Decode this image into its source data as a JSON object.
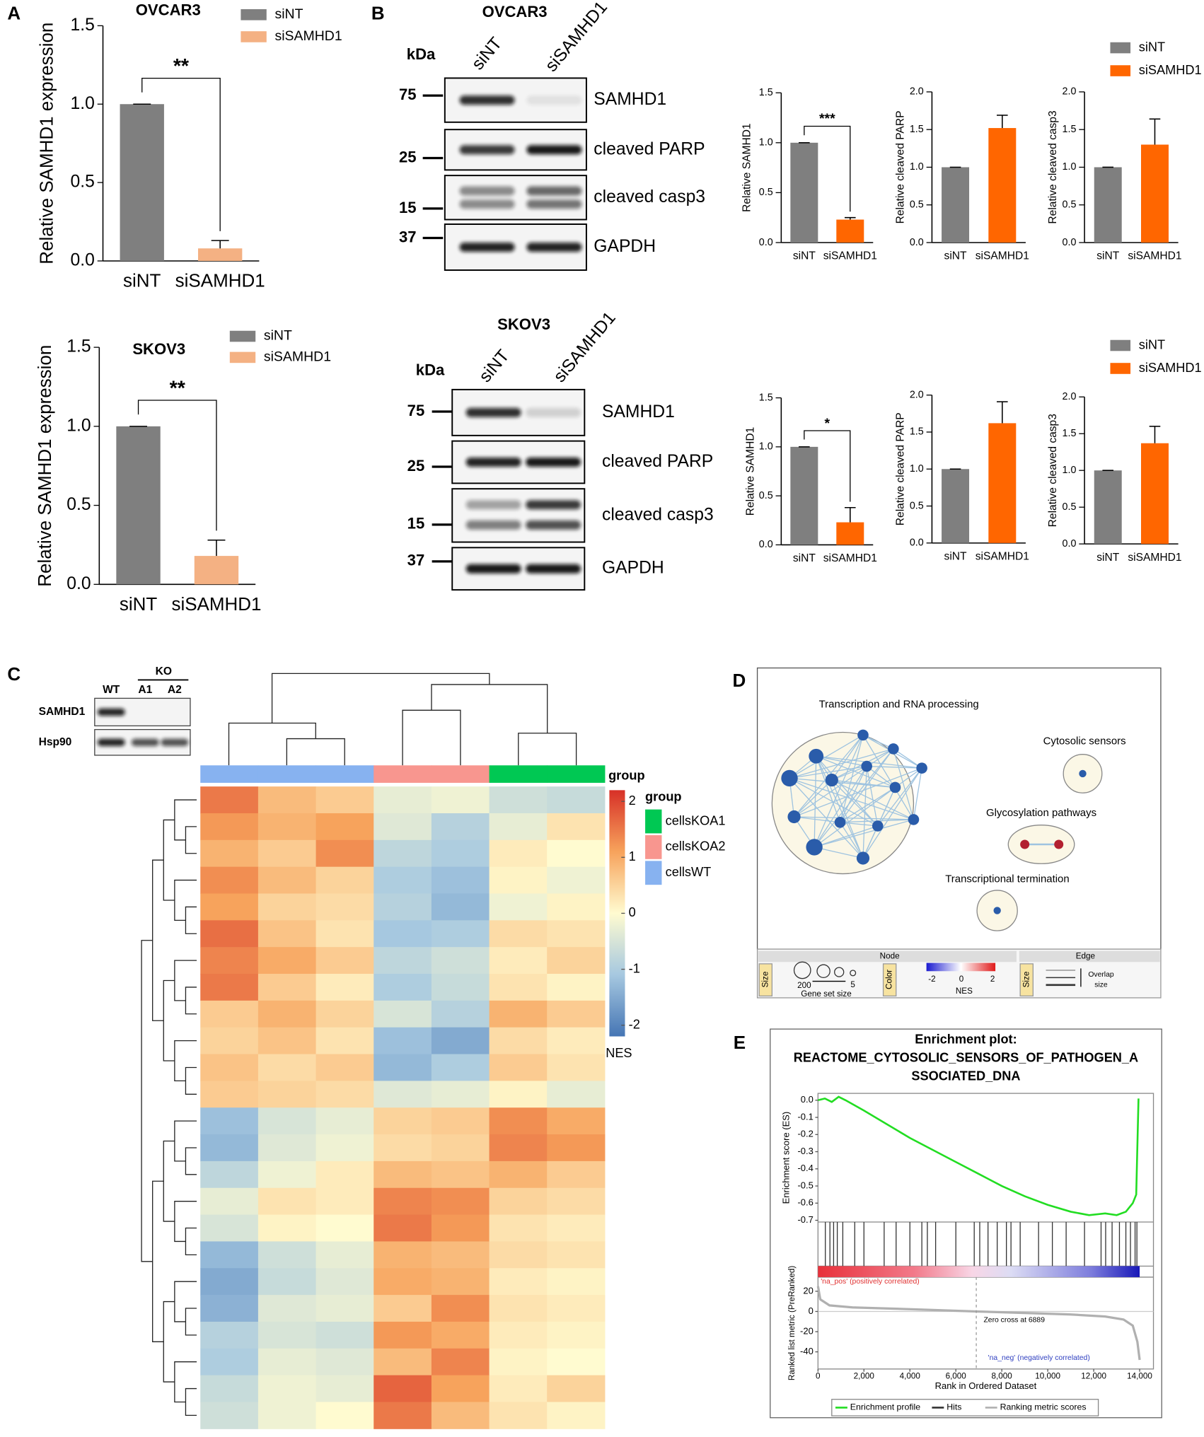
{
  "panel_labels": [
    "A",
    "B",
    "C",
    "D",
    "E"
  ],
  "chart_data": [
    {
      "type": "bar",
      "title": "OVCAR3",
      "y_label": "Relative SAMHD1 expression",
      "categories": [
        "siNT",
        "siSAMHD1"
      ],
      "values": [
        1.0,
        0.08
      ],
      "errors": [
        0,
        0.05
      ],
      "colors": [
        "#7f7f7f",
        "#f4b183"
      ],
      "ylim": [
        0,
        1.5
      ],
      "yticks": [
        {
          "value": 0,
          "label": "0.0"
        },
        0.5,
        {
          "value": 1,
          "label": "1.0"
        },
        1.5
      ],
      "significance": "**",
      "legend": true
    },
    {
      "type": "bar",
      "title": "SKOV3",
      "y_label": "Relative SAMHD1 expression",
      "categories": [
        "siNT",
        "siSAMHD1"
      ],
      "values": [
        1.0,
        0.18
      ],
      "errors": [
        0,
        0.1
      ],
      "colors": [
        "#7f7f7f",
        "#f4b183"
      ],
      "ylim": [
        0,
        1.5
      ],
      "yticks": [
        {
          "value": 0,
          "label": "0.0"
        },
        0.5,
        {
          "value": 1,
          "label": "1.0"
        },
        1.5
      ],
      "significance": "**",
      "legend": true
    },
    {
      "type": "bar",
      "y_label": "Relative SAMHD1",
      "categories": [
        "siNT",
        "siSAMHD1"
      ],
      "values": [
        1.0,
        0.23
      ],
      "errors": [
        0,
        0.02
      ],
      "colors": [
        "#7f7f7f",
        "#ff6600"
      ],
      "ylim": [
        0,
        1.5
      ],
      "yticks": [
        {
          "value": 0,
          "label": "0.0"
        },
        0.5,
        {
          "value": 1,
          "label": "1.0"
        },
        1.5
      ],
      "significance": "***"
    },
    {
      "type": "bar",
      "y_label": "Relative cleaved PARP",
      "categories": [
        "siNT",
        "siSAMHD1"
      ],
      "values": [
        1.0,
        1.52
      ],
      "errors": [
        0,
        0.17
      ],
      "colors": [
        "#7f7f7f",
        "#ff6600"
      ],
      "ylim": [
        0,
        2
      ],
      "yticks": [
        {
          "value": 0,
          "label": "0.0"
        },
        0.5,
        {
          "value": 1,
          "label": "1.0"
        },
        1.5,
        {
          "value": 2,
          "label": "2.0"
        }
      ]
    },
    {
      "type": "bar",
      "y_label": "Relative cleaved casp3",
      "categories": [
        "siNT",
        "siSAMHD1"
      ],
      "values": [
        1.0,
        1.3
      ],
      "errors": [
        0,
        0.34
      ],
      "colors": [
        "#7f7f7f",
        "#ff6600"
      ],
      "ylim": [
        0,
        2
      ],
      "yticks": [
        {
          "value": 0,
          "label": "0.0"
        },
        0.5,
        {
          "value": 1,
          "label": "1.0"
        },
        1.5,
        {
          "value": 2,
          "label": "2.0"
        }
      ],
      "legend": true
    },
    {
      "type": "bar",
      "y_label": "Relative SAMHD1",
      "categories": [
        "siNT",
        "siSAMHD1"
      ],
      "values": [
        1.0,
        0.23
      ],
      "errors": [
        0,
        0.15
      ],
      "colors": [
        "#7f7f7f",
        "#ff6600"
      ],
      "ylim": [
        0,
        1.5
      ],
      "yticks": [
        {
          "value": 0,
          "label": "0.0"
        },
        0.5,
        {
          "value": 1,
          "label": "1.0"
        },
        1.5
      ],
      "significance": "*"
    },
    {
      "type": "bar",
      "y_label": "Relative cleaved PARP",
      "categories": [
        "siNT",
        "siSAMHD1"
      ],
      "values": [
        1.0,
        1.62
      ],
      "errors": [
        0,
        0.29
      ],
      "colors": [
        "#7f7f7f",
        "#ff6600"
      ],
      "ylim": [
        0,
        2
      ],
      "yticks": [
        {
          "value": 0,
          "label": "0.0"
        },
        0.5,
        {
          "value": 1,
          "label": "1.0"
        },
        1.5,
        {
          "value": 2,
          "label": "2.0"
        }
      ]
    },
    {
      "type": "bar",
      "y_label": "Relative cleaved casp3",
      "categories": [
        "siNT",
        "siSAMHD1"
      ],
      "values": [
        1.0,
        1.37
      ],
      "errors": [
        0,
        0.23
      ],
      "colors": [
        "#7f7f7f",
        "#ff6600"
      ],
      "ylim": [
        0,
        2
      ],
      "yticks": [
        {
          "value": 0,
          "label": "0.0"
        },
        0.5,
        {
          "value": 1,
          "label": "1.0"
        },
        1.5,
        {
          "value": 2,
          "label": "2.0"
        }
      ],
      "legend": true
    },
    {
      "type": "heatmap",
      "values": [
        [
          1.5,
          0.8,
          0.6,
          -0.3,
          -0.2,
          -0.6,
          -0.7
        ],
        [
          1.2,
          0.9,
          1.1,
          -0.4,
          -0.9,
          -0.3,
          0.3
        ],
        [
          0.9,
          0.6,
          1.3,
          -0.8,
          -1.0,
          0.2,
          0.0
        ],
        [
          1.3,
          0.8,
          0.5,
          -1.0,
          -1.2,
          0.1,
          -0.2
        ],
        [
          1.1,
          0.5,
          0.4,
          -0.9,
          -1.3,
          -0.2,
          0.1
        ],
        [
          1.6,
          0.7,
          0.3,
          -1.1,
          -1.0,
          0.4,
          0.3
        ],
        [
          1.4,
          1.0,
          0.6,
          -0.8,
          -0.6,
          0.2,
          0.5
        ],
        [
          1.5,
          0.6,
          0.2,
          -1.0,
          -0.7,
          0.3,
          0.1
        ],
        [
          0.6,
          0.9,
          0.5,
          -0.5,
          -0.9,
          0.9,
          0.6
        ],
        [
          0.5,
          0.7,
          0.3,
          -1.2,
          -1.5,
          0.4,
          0.2
        ],
        [
          0.7,
          0.4,
          0.6,
          -1.3,
          -1.0,
          0.6,
          0.3
        ],
        [
          0.6,
          0.5,
          0.4,
          -0.4,
          -0.3,
          0.1,
          -0.3
        ],
        [
          -1.2,
          -0.5,
          -0.3,
          0.5,
          0.6,
          1.3,
          1.0
        ],
        [
          -1.3,
          -0.4,
          -0.2,
          0.4,
          0.5,
          1.4,
          1.2
        ],
        [
          -0.8,
          -0.2,
          0.2,
          0.8,
          0.7,
          0.9,
          0.6
        ],
        [
          -0.3,
          0.3,
          0.2,
          1.4,
          1.3,
          0.5,
          0.4
        ],
        [
          -0.5,
          0.1,
          0.0,
          1.5,
          1.2,
          0.3,
          0.2
        ],
        [
          -1.3,
          -0.6,
          -0.3,
          0.9,
          0.8,
          0.4,
          0.3
        ],
        [
          -1.5,
          -0.7,
          -0.4,
          1.0,
          0.9,
          0.2,
          0.1
        ],
        [
          -1.4,
          -0.4,
          -0.3,
          0.6,
          1.3,
          0.3,
          0.2
        ],
        [
          -0.9,
          -0.5,
          -0.6,
          1.2,
          1.0,
          0.2,
          0.1
        ],
        [
          -1.0,
          -0.3,
          -0.4,
          0.8,
          1.4,
          0.1,
          0.0
        ],
        [
          -0.7,
          -0.2,
          -0.3,
          1.7,
          1.1,
          0.2,
          0.5
        ],
        [
          -0.6,
          -0.2,
          0.0,
          1.5,
          0.8,
          0.3,
          0.1
        ]
      ],
      "column_groups": [
        "cellsWT",
        "cellsWT",
        "cellsWT",
        "cellsKOA2",
        "cellsKOA2",
        "cellsKOA1",
        "cellsKOA1"
      ],
      "column_group_label": "group",
      "legend_title": "group",
      "groups": [
        {
          "name": "cellsKOA1",
          "color": "#00c853"
        },
        {
          "name": "cellsKOA2",
          "color": "#f8968f"
        },
        {
          "name": "cellsWT",
          "color": "#87b2f0"
        }
      ],
      "colorscale": [
        "#4575b4",
        "#a6c8e0",
        "#fffbd0",
        "#f7a35c",
        "#d73027"
      ],
      "zlim": [
        -2.2,
        2.2
      ],
      "zticks": [
        2,
        1,
        0,
        -1,
        -2
      ],
      "z_label": "NES"
    },
    {
      "type": "enrichment",
      "title_lines": [
        "Enrichment plot:",
        "REACTOME_CYTOSOLIC_SENSORS_OF_PATHOGEN_A",
        "SSOCIATED_DNA"
      ],
      "y_label": "Enrichment score (ES)",
      "x": [
        0,
        300,
        600,
        900,
        1200,
        2000,
        3000,
        4000,
        5000,
        6000,
        7000,
        8000,
        9000,
        10000,
        11000,
        11800,
        12500,
        13000,
        13400,
        13700,
        13850,
        13950
      ],
      "es": [
        0,
        0.01,
        -0.01,
        0.02,
        0.0,
        -0.06,
        -0.14,
        -0.22,
        -0.29,
        -0.36,
        -0.43,
        -0.5,
        -0.56,
        -0.61,
        -0.65,
        -0.67,
        -0.66,
        -0.67,
        -0.65,
        -0.6,
        -0.55,
        0.01
      ],
      "xlim": [
        0,
        14600
      ],
      "ylim": [
        -0.71,
        0.04
      ],
      "yticks": [
        {
          "value": 0,
          "label": "0.0"
        },
        -0.1,
        -0.2,
        -0.3,
        -0.4,
        -0.5,
        -0.6,
        -0.7
      ],
      "hits": [
        320,
        520,
        680,
        840,
        1080,
        1600,
        2000,
        2880,
        3400,
        4000,
        4520,
        4760,
        5120,
        6000,
        6800,
        7040,
        7400,
        7800,
        8200,
        8400,
        8800,
        9600,
        10200,
        10800,
        11600,
        12320,
        12520,
        12800,
        13120,
        13400,
        13600,
        13800,
        13880
      ],
      "metric_label": "Ranked list metric (PreRanked)",
      "metric_x": [
        0,
        100,
        500,
        1500,
        3000,
        5000,
        6889,
        9000,
        11000,
        12500,
        13300,
        13700,
        13900,
        14000
      ],
      "metric": [
        25,
        12,
        6,
        4,
        3,
        1.5,
        0,
        -1.5,
        -3,
        -5,
        -8,
        -14,
        -30,
        -48
      ],
      "metric_ylim": [
        -57,
        34
      ],
      "metric_yticks": [
        20,
        0,
        -20,
        -40
      ],
      "xticks": [
        0,
        {
          "value": 2000,
          "label": "2,000"
        },
        {
          "value": 4000,
          "label": "4,000"
        },
        {
          "value": 6000,
          "label": "6,000"
        },
        {
          "value": 8000,
          "label": "8,000"
        },
        {
          "value": 10000,
          "label": "10,000"
        },
        {
          "value": 12000,
          "label": "12,000"
        },
        {
          "value": 14000,
          "label": "14,000"
        }
      ],
      "x_label": "Rank in Ordered Dataset",
      "pos_label": "'na_pos' (positively correlated)",
      "neg_label": "'na_neg' (negatively correlated)",
      "zero_cross": 6889,
      "zero_cross_label": "Zero cross at 6889",
      "legend": [
        {
          "name": "Enrichment profile",
          "color": "#22dd22"
        },
        {
          "name": "Hits",
          "color": "#333333"
        },
        {
          "name": "Ranking metric scores",
          "color": "#b0b0b0"
        }
      ]
    }
  ],
  "blots": [
    {
      "title": "OVCAR3",
      "kda": "kDa",
      "lanes": [
        "siNT",
        "siSAMHD1"
      ],
      "markers": [
        75,
        25,
        15,
        37
      ],
      "proteins": [
        "SAMHD1",
        "cleaved PARP",
        "cleaved casp3",
        "GAPDH"
      ]
    },
    {
      "title": "SKOV3",
      "kda": "kDa",
      "lanes": [
        "siNT",
        "siSAMHD1"
      ],
      "markers": [
        75,
        25,
        15,
        37
      ],
      "proteins": [
        "SAMHD1",
        "cleaved PARP",
        "cleaved casp3",
        "GAPDH"
      ]
    },
    {
      "group": "KO",
      "lanes": [
        "WT",
        "A1",
        "A2"
      ],
      "proteins": [
        "SAMHD1",
        "Hsp90"
      ]
    }
  ],
  "network": {
    "clusters": [
      "Transcription and RNA processing",
      "Cytosolic sensors",
      "Glycosylation pathways",
      "Transcriptional termination"
    ],
    "legend": {
      "node": "Node",
      "edge": "Edge",
      "size": "Size",
      "size_max": 200,
      "size_min": 5,
      "size_label": "Gene set size",
      "color": "Color",
      "nes_ticks": [
        -2,
        0,
        2
      ],
      "nes_label": "NES",
      "edge_size": "Size",
      "overlap": [
        "Overlap",
        "size"
      ]
    }
  }
}
